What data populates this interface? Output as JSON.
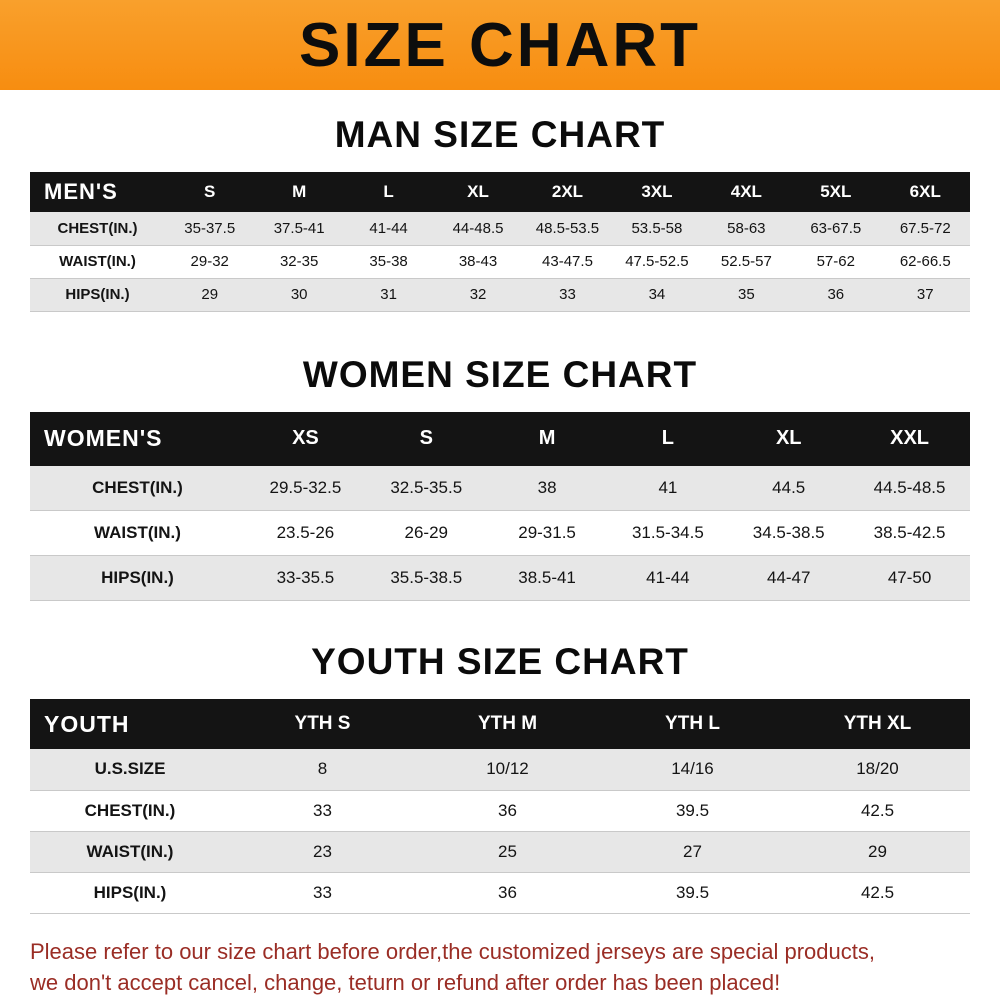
{
  "banner": {
    "title": "SIZE CHART",
    "bg_color": "#F7941E",
    "text_color": "#0D0D0D"
  },
  "men": {
    "heading": "MAN SIZE CHART",
    "label": "MEN'S",
    "sizes": [
      "S",
      "M",
      "L",
      "XL",
      "2XL",
      "3XL",
      "4XL",
      "5XL",
      "6XL"
    ],
    "rows": [
      {
        "label": "CHEST(IN.)",
        "values": [
          "35-37.5",
          "37.5-41",
          "41-44",
          "44-48.5",
          "48.5-53.5",
          "53.5-58",
          "58-63",
          "63-67.5",
          "67.5-72"
        ]
      },
      {
        "label": "WAIST(IN.)",
        "values": [
          "29-32",
          "32-35",
          "35-38",
          "38-43",
          "43-47.5",
          "47.5-52.5",
          "52.5-57",
          "57-62",
          "62-66.5"
        ]
      },
      {
        "label": "HIPS(IN.)",
        "values": [
          "29",
          "30",
          "31",
          "32",
          "33",
          "34",
          "35",
          "36",
          "37"
        ]
      }
    ]
  },
  "women": {
    "heading": "WOMEN SIZE CHART",
    "label": "WOMEN'S",
    "sizes": [
      "XS",
      "S",
      "M",
      "L",
      "XL",
      "XXL"
    ],
    "rows": [
      {
        "label": "CHEST(IN.)",
        "values": [
          "29.5-32.5",
          "32.5-35.5",
          "38",
          "41",
          "44.5",
          "44.5-48.5"
        ]
      },
      {
        "label": "WAIST(IN.)",
        "values": [
          "23.5-26",
          "26-29",
          "29-31.5",
          "31.5-34.5",
          "34.5-38.5",
          "38.5-42.5"
        ]
      },
      {
        "label": "HIPS(IN.)",
        "values": [
          "33-35.5",
          "35.5-38.5",
          "38.5-41",
          "41-44",
          "44-47",
          "47-50"
        ]
      }
    ]
  },
  "youth": {
    "heading": "YOUTH SIZE CHART",
    "label": "YOUTH",
    "sizes": [
      "YTH S",
      "YTH M",
      "YTH L",
      "YTH XL"
    ],
    "rows": [
      {
        "label": "U.S.SIZE",
        "values": [
          "8",
          "10/12",
          "14/16",
          "18/20"
        ]
      },
      {
        "label": "CHEST(IN.)",
        "values": [
          "33",
          "36",
          "39.5",
          "42.5"
        ]
      },
      {
        "label": "WAIST(IN.)",
        "values": [
          "23",
          "25",
          "27",
          "29"
        ]
      },
      {
        "label": "HIPS(IN.)",
        "values": [
          "33",
          "36",
          "39.5",
          "42.5"
        ]
      }
    ]
  },
  "footer": {
    "line1": "Please refer to our size chart before order,the customized jerseys are special products,",
    "line2": "we don't accept cancel, change, teturn or refund after order has been placed!",
    "text_color": "#9A2D25"
  }
}
